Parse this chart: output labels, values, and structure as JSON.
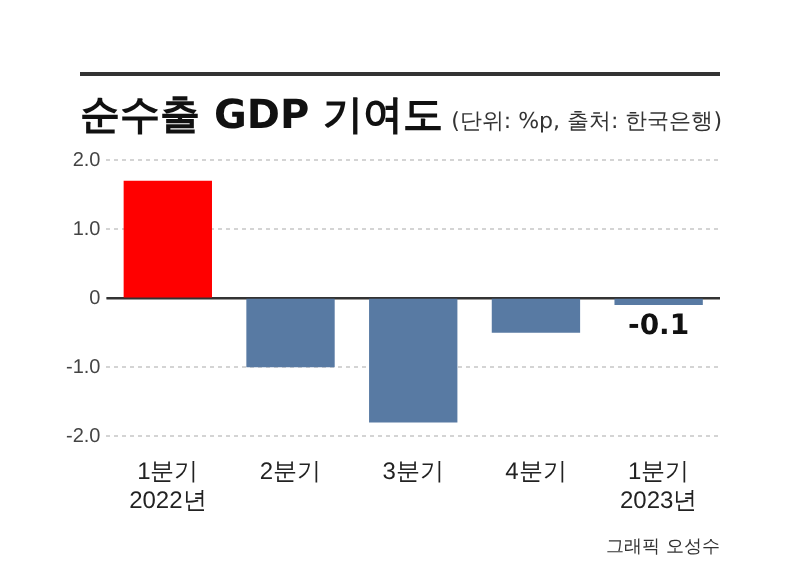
{
  "chart_data": {
    "type": "bar",
    "title": "순수출 GDP 기여도",
    "subtitle": "(단위: %p, 출처: 한국은행)",
    "categories": [
      "1분기 2022년",
      "2분기",
      "3분기",
      "4분기",
      "1분기 2023년"
    ],
    "values": [
      1.7,
      -1.0,
      -1.8,
      -0.5,
      -0.1
    ],
    "colors": [
      "#ff0000",
      "#587aa3",
      "#587aa3",
      "#587aa3",
      "#587aa3"
    ],
    "value_labels": [
      null,
      null,
      null,
      null,
      "-0.1"
    ],
    "ylim": [
      -2,
      2
    ],
    "ref_lines": [
      {
        "axis": "y",
        "value": 0,
        "color": "#333333"
      }
    ],
    "yticks": [
      {
        "value": 2,
        "label": "2.0"
      },
      {
        "value": 1,
        "label": "1.0"
      },
      0,
      {
        "value": -1,
        "label": "-1.0"
      },
      {
        "value": -2,
        "label": "-2.0"
      }
    ],
    "grid": "y",
    "annotations": [
      "그래픽 오성수"
    ]
  }
}
